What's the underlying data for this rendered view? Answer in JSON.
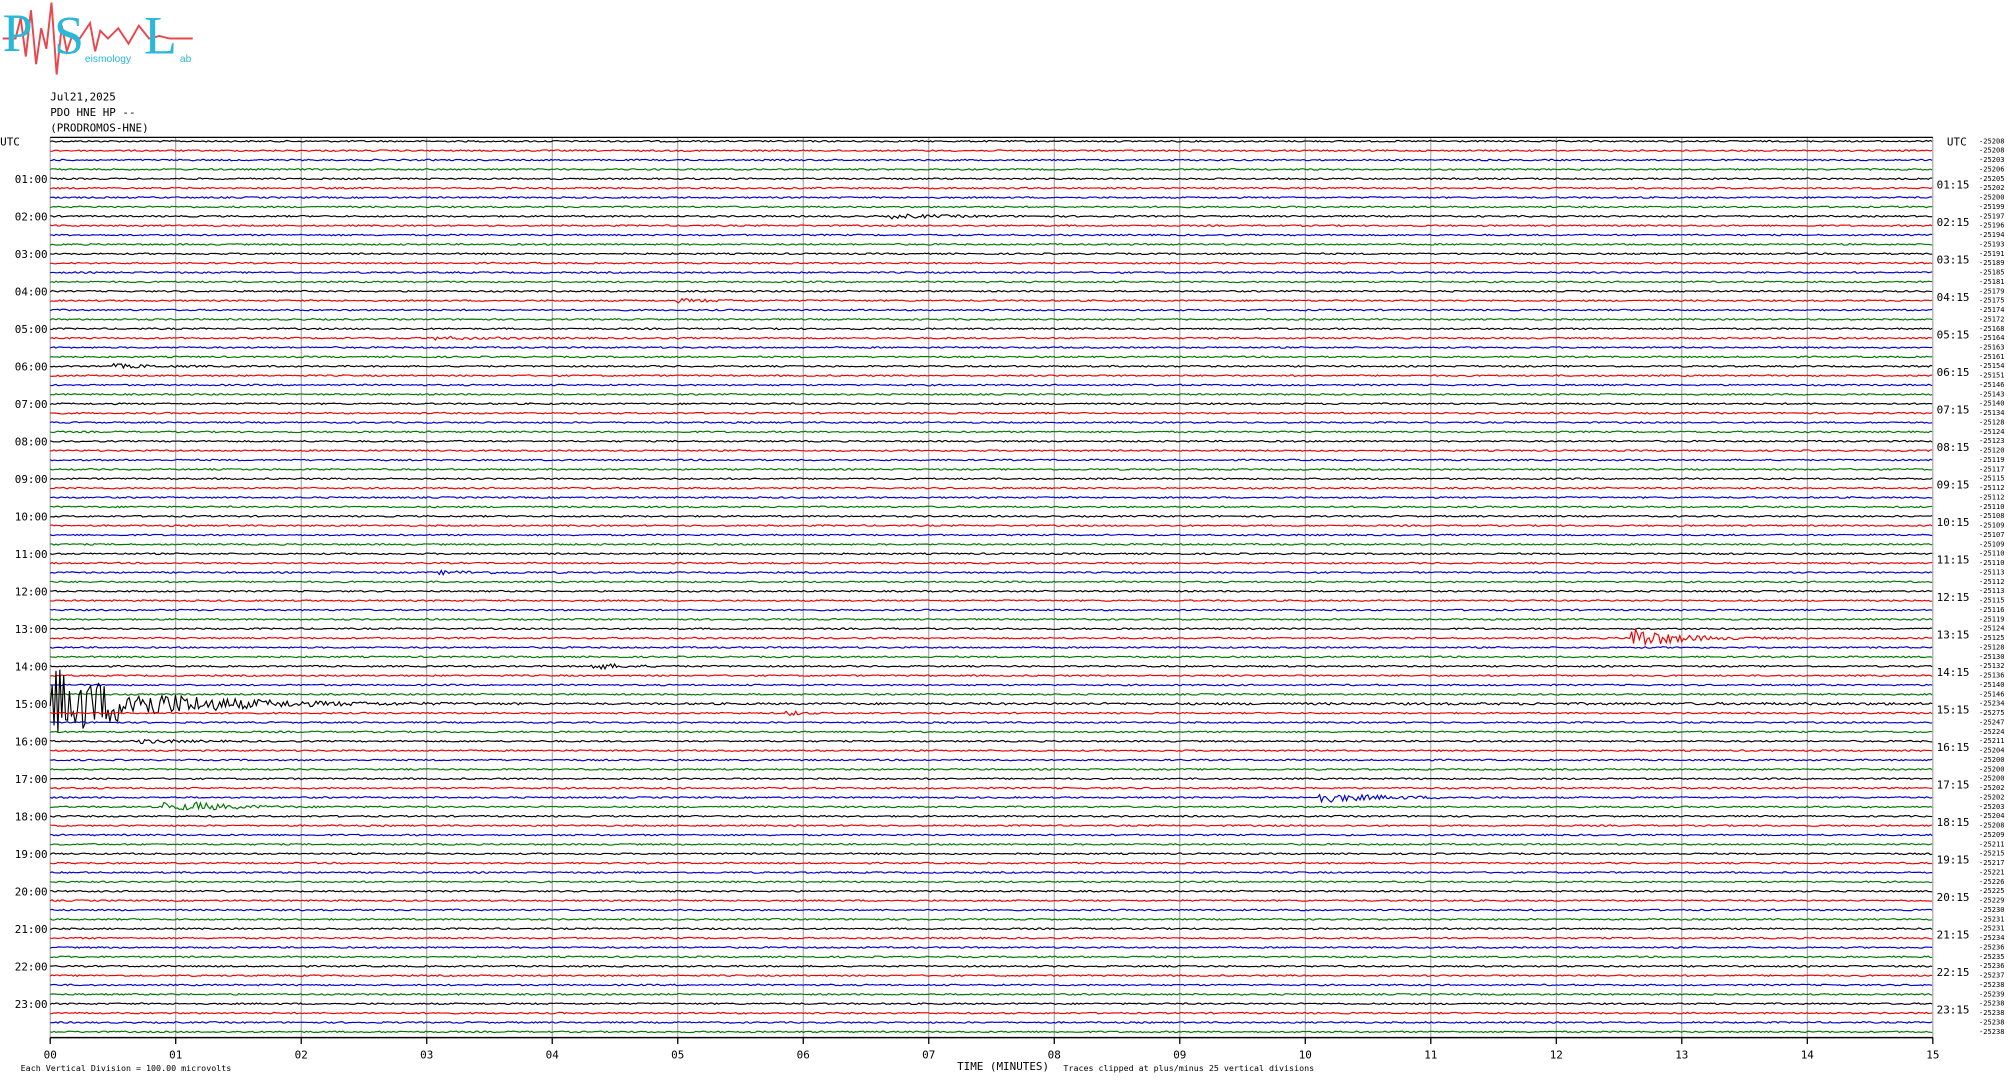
{
  "logo": {
    "letters": [
      "P",
      "S",
      "L"
    ],
    "words": [
      "eismology",
      "ab"
    ]
  },
  "header": {
    "date": "Jul21,2025",
    "station": "PDO HNE HP --",
    "site": "(PRODROMOS-HNE)"
  },
  "left_title": "UTC",
  "right_title": "UTC",
  "left_labels": [
    "01:00",
    "02:00",
    "03:00",
    "04:00",
    "05:00",
    "06:00",
    "07:00",
    "08:00",
    "09:00",
    "10:00",
    "11:00",
    "12:00",
    "13:00",
    "14:00",
    "15:00",
    "16:00",
    "17:00",
    "18:00",
    "19:00",
    "20:00",
    "21:00",
    "22:00",
    "23:00"
  ],
  "right_labels": [
    "01:15",
    "02:15",
    "03:15",
    "04:15",
    "05:15",
    "06:15",
    "07:15",
    "08:15",
    "09:15",
    "10:15",
    "11:15",
    "12:15",
    "13:15",
    "14:15",
    "15:15",
    "16:15",
    "17:15",
    "18:15",
    "19:15",
    "20:15",
    "21:15",
    "22:15",
    "23:15"
  ],
  "row_offsets": [
    "-25208",
    "-25208",
    "-25203",
    "-25206",
    "-25205",
    "-25202",
    "-25200",
    "-25199",
    "-25197",
    "-25196",
    "-25194",
    "-25193",
    "-25191",
    "-25189",
    "-25185",
    "-25181",
    "-25179",
    "-25175",
    "-25174",
    "-25172",
    "-25168",
    "-25164",
    "-25163",
    "-25161",
    "-25154",
    "-25151",
    "-25146",
    "-25143",
    "-25140",
    "-25134",
    "-25128",
    "-25124",
    "-25123",
    "-25120",
    "-25119",
    "-25117",
    "-25115",
    "-25112",
    "-25112",
    "-25110",
    "-25108",
    "-25109",
    "-25107",
    "-25109",
    "-25110",
    "-25110",
    "-25113",
    "-25112",
    "-25113",
    "-25115",
    "-25116",
    "-25119",
    "-25124",
    "-25125",
    "-25128",
    "-25130",
    "-25132",
    "-25136",
    "-25140",
    "-25146",
    "-25234",
    "-25275",
    "-25247",
    "-25224",
    "-25211",
    "-25204",
    "-25200",
    "-25200",
    "-25200",
    "-25202",
    "-25202",
    "-25203",
    "-25204",
    "-25208",
    "-25209",
    "-25211",
    "-25215",
    "-25217",
    "-25221",
    "-25226",
    "-25225",
    "-25229",
    "-25230",
    "-25231",
    "-25231",
    "-25234",
    "-25236",
    "-25235",
    "-25236",
    "-25237",
    "-25238",
    "-25239",
    "-25238",
    "-25238",
    "-25238",
    "-25238"
  ],
  "x_labels": [
    "00",
    "01",
    "02",
    "03",
    "04",
    "05",
    "06",
    "07",
    "08",
    "09",
    "10",
    "11",
    "12",
    "13",
    "14",
    "15"
  ],
  "x_title": "TIME (MINUTES)",
  "clip_note": "Traces clipped at plus/minus 25 vertical divisions",
  "scale_note": "Each Vertical Division =  100.00 microvolts"
}
